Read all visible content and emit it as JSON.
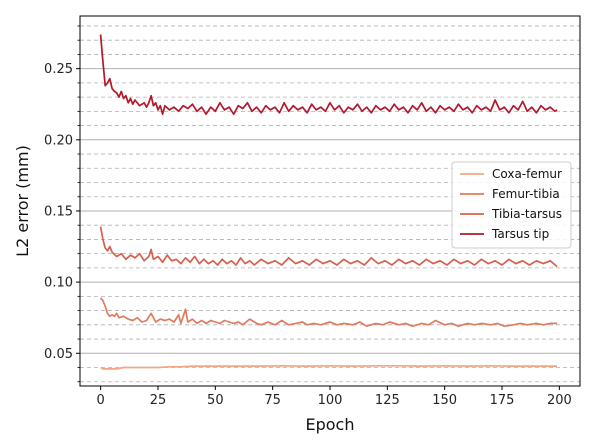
{
  "chart_data": {
    "type": "line",
    "title": "",
    "xlabel": "Epoch",
    "ylabel": "L2 error (mm)",
    "xlim": [
      -9,
      209
    ],
    "ylim": [
      0.027,
      0.287
    ],
    "xticks": [
      0,
      25,
      50,
      75,
      100,
      125,
      150,
      175,
      200
    ],
    "yticks": [
      0.05,
      0.1,
      0.15,
      0.2,
      0.25
    ],
    "ytick_labels": [
      "0.05",
      "0.10",
      "0.15",
      "0.20",
      "0.25"
    ],
    "yminor_step": 0.01,
    "grid": "y major solid, y minor dashed",
    "legend_position": "center-right",
    "series": [
      {
        "name": "Coxa-femur",
        "color": "#f4a582",
        "points": [
          [
            0,
            0.04
          ],
          [
            1,
            0.039
          ],
          [
            3,
            0.039
          ],
          [
            5,
            0.039
          ],
          [
            7,
            0.039
          ],
          [
            10,
            0.04
          ],
          [
            15,
            0.04
          ],
          [
            20,
            0.04
          ],
          [
            25,
            0.04
          ],
          [
            30,
            0.0405
          ],
          [
            35,
            0.0405
          ],
          [
            40,
            0.041
          ],
          [
            50,
            0.041
          ],
          [
            60,
            0.041
          ],
          [
            70,
            0.041
          ],
          [
            80,
            0.0412
          ],
          [
            90,
            0.041
          ],
          [
            100,
            0.0412
          ],
          [
            110,
            0.041
          ],
          [
            120,
            0.0412
          ],
          [
            130,
            0.0412
          ],
          [
            140,
            0.041
          ],
          [
            150,
            0.0412
          ],
          [
            160,
            0.041
          ],
          [
            170,
            0.0412
          ],
          [
            180,
            0.041
          ],
          [
            190,
            0.041
          ],
          [
            199,
            0.041
          ]
        ]
      },
      {
        "name": "Femur-tibia",
        "color": "#e07b5f",
        "points": [
          [
            0,
            0.089
          ],
          [
            1,
            0.087
          ],
          [
            2,
            0.083
          ],
          [
            3,
            0.078
          ],
          [
            4,
            0.076
          ],
          [
            5,
            0.077
          ],
          [
            6,
            0.076
          ],
          [
            7,
            0.078
          ],
          [
            8,
            0.075
          ],
          [
            10,
            0.076
          ],
          [
            12,
            0.074
          ],
          [
            14,
            0.073
          ],
          [
            16,
            0.075
          ],
          [
            18,
            0.072
          ],
          [
            20,
            0.073
          ],
          [
            22,
            0.078
          ],
          [
            24,
            0.072
          ],
          [
            26,
            0.074
          ],
          [
            28,
            0.073
          ],
          [
            30,
            0.074
          ],
          [
            32,
            0.072
          ],
          [
            34,
            0.077
          ],
          [
            35,
            0.071
          ],
          [
            37,
            0.081
          ],
          [
            38,
            0.072
          ],
          [
            40,
            0.074
          ],
          [
            42,
            0.071
          ],
          [
            44,
            0.073
          ],
          [
            46,
            0.071
          ],
          [
            48,
            0.073
          ],
          [
            50,
            0.072
          ],
          [
            52,
            0.071
          ],
          [
            54,
            0.073
          ],
          [
            56,
            0.072
          ],
          [
            58,
            0.071
          ],
          [
            60,
            0.072
          ],
          [
            62,
            0.07
          ],
          [
            65,
            0.074
          ],
          [
            68,
            0.071
          ],
          [
            70,
            0.07
          ],
          [
            73,
            0.072
          ],
          [
            76,
            0.07
          ],
          [
            79,
            0.073
          ],
          [
            82,
            0.07
          ],
          [
            85,
            0.071
          ],
          [
            88,
            0.072
          ],
          [
            90,
            0.07
          ],
          [
            93,
            0.071
          ],
          [
            96,
            0.07
          ],
          [
            100,
            0.072
          ],
          [
            103,
            0.07
          ],
          [
            106,
            0.071
          ],
          [
            110,
            0.07
          ],
          [
            113,
            0.072
          ],
          [
            116,
            0.069
          ],
          [
            120,
            0.071
          ],
          [
            123,
            0.07
          ],
          [
            126,
            0.072
          ],
          [
            130,
            0.07
          ],
          [
            133,
            0.071
          ],
          [
            136,
            0.069
          ],
          [
            140,
            0.071
          ],
          [
            143,
            0.07
          ],
          [
            146,
            0.073
          ],
          [
            150,
            0.07
          ],
          [
            153,
            0.071
          ],
          [
            156,
            0.069
          ],
          [
            160,
            0.071
          ],
          [
            163,
            0.07
          ],
          [
            166,
            0.071
          ],
          [
            170,
            0.07
          ],
          [
            173,
            0.071
          ],
          [
            176,
            0.069
          ],
          [
            180,
            0.07
          ],
          [
            183,
            0.071
          ],
          [
            186,
            0.07
          ],
          [
            190,
            0.071
          ],
          [
            193,
            0.07
          ],
          [
            196,
            0.071
          ],
          [
            199,
            0.071
          ]
        ]
      },
      {
        "name": "Tibia-tarsus",
        "color": "#d6604d",
        "points": [
          [
            0,
            0.139
          ],
          [
            1,
            0.13
          ],
          [
            2,
            0.124
          ],
          [
            3,
            0.122
          ],
          [
            4,
            0.125
          ],
          [
            5,
            0.121
          ],
          [
            7,
            0.118
          ],
          [
            9,
            0.12
          ],
          [
            11,
            0.116
          ],
          [
            13,
            0.119
          ],
          [
            15,
            0.117
          ],
          [
            17,
            0.12
          ],
          [
            19,
            0.115
          ],
          [
            21,
            0.118
          ],
          [
            22,
            0.123
          ],
          [
            23,
            0.116
          ],
          [
            25,
            0.118
          ],
          [
            27,
            0.114
          ],
          [
            29,
            0.119
          ],
          [
            31,
            0.115
          ],
          [
            33,
            0.116
          ],
          [
            35,
            0.113
          ],
          [
            37,
            0.117
          ],
          [
            39,
            0.114
          ],
          [
            41,
            0.118
          ],
          [
            43,
            0.113
          ],
          [
            45,
            0.116
          ],
          [
            47,
            0.113
          ],
          [
            49,
            0.115
          ],
          [
            51,
            0.112
          ],
          [
            53,
            0.116
          ],
          [
            55,
            0.113
          ],
          [
            57,
            0.115
          ],
          [
            59,
            0.112
          ],
          [
            61,
            0.117
          ],
          [
            63,
            0.113
          ],
          [
            65,
            0.115
          ],
          [
            67,
            0.112
          ],
          [
            70,
            0.116
          ],
          [
            73,
            0.113
          ],
          [
            76,
            0.115
          ],
          [
            79,
            0.112
          ],
          [
            82,
            0.117
          ],
          [
            85,
            0.113
          ],
          [
            88,
            0.115
          ],
          [
            91,
            0.112
          ],
          [
            94,
            0.116
          ],
          [
            97,
            0.113
          ],
          [
            100,
            0.115
          ],
          [
            103,
            0.112
          ],
          [
            106,
            0.116
          ],
          [
            109,
            0.113
          ],
          [
            112,
            0.115
          ],
          [
            115,
            0.112
          ],
          [
            118,
            0.117
          ],
          [
            121,
            0.113
          ],
          [
            124,
            0.115
          ],
          [
            127,
            0.112
          ],
          [
            130,
            0.116
          ],
          [
            133,
            0.113
          ],
          [
            136,
            0.115
          ],
          [
            139,
            0.112
          ],
          [
            142,
            0.116
          ],
          [
            145,
            0.113
          ],
          [
            148,
            0.115
          ],
          [
            151,
            0.112
          ],
          [
            154,
            0.116
          ],
          [
            157,
            0.113
          ],
          [
            160,
            0.115
          ],
          [
            163,
            0.112
          ],
          [
            166,
            0.116
          ],
          [
            169,
            0.113
          ],
          [
            172,
            0.115
          ],
          [
            175,
            0.112
          ],
          [
            178,
            0.116
          ],
          [
            181,
            0.113
          ],
          [
            184,
            0.115
          ],
          [
            187,
            0.112
          ],
          [
            190,
            0.115
          ],
          [
            193,
            0.113
          ],
          [
            196,
            0.115
          ],
          [
            199,
            0.111
          ]
        ]
      },
      {
        "name": "Tarsus tip",
        "color": "#b2182b",
        "points": [
          [
            0,
            0.274
          ],
          [
            1,
            0.255
          ],
          [
            2,
            0.238
          ],
          [
            3,
            0.24
          ],
          [
            4,
            0.243
          ],
          [
            5,
            0.236
          ],
          [
            6,
            0.234
          ],
          [
            7,
            0.233
          ],
          [
            8,
            0.23
          ],
          [
            9,
            0.234
          ],
          [
            10,
            0.229
          ],
          [
            11,
            0.231
          ],
          [
            12,
            0.226
          ],
          [
            13,
            0.229
          ],
          [
            14,
            0.225
          ],
          [
            15,
            0.228
          ],
          [
            17,
            0.224
          ],
          [
            19,
            0.226
          ],
          [
            20,
            0.223
          ],
          [
            21,
            0.226
          ],
          [
            22,
            0.231
          ],
          [
            23,
            0.224
          ],
          [
            24,
            0.226
          ],
          [
            25,
            0.221
          ],
          [
            26,
            0.224
          ],
          [
            27,
            0.218
          ],
          [
            28,
            0.224
          ],
          [
            30,
            0.221
          ],
          [
            32,
            0.223
          ],
          [
            34,
            0.22
          ],
          [
            36,
            0.224
          ],
          [
            38,
            0.222
          ],
          [
            40,
            0.225
          ],
          [
            42,
            0.22
          ],
          [
            44,
            0.223
          ],
          [
            46,
            0.218
          ],
          [
            48,
            0.223
          ],
          [
            50,
            0.22
          ],
          [
            52,
            0.226
          ],
          [
            54,
            0.221
          ],
          [
            56,
            0.223
          ],
          [
            58,
            0.218
          ],
          [
            60,
            0.224
          ],
          [
            62,
            0.222
          ],
          [
            64,
            0.226
          ],
          [
            66,
            0.22
          ],
          [
            68,
            0.223
          ],
          [
            70,
            0.219
          ],
          [
            72,
            0.224
          ],
          [
            74,
            0.221
          ],
          [
            76,
            0.223
          ],
          [
            78,
            0.219
          ],
          [
            80,
            0.226
          ],
          [
            82,
            0.22
          ],
          [
            84,
            0.224
          ],
          [
            86,
            0.221
          ],
          [
            88,
            0.223
          ],
          [
            90,
            0.219
          ],
          [
            92,
            0.225
          ],
          [
            94,
            0.221
          ],
          [
            96,
            0.223
          ],
          [
            98,
            0.22
          ],
          [
            100,
            0.226
          ],
          [
            102,
            0.221
          ],
          [
            104,
            0.224
          ],
          [
            106,
            0.219
          ],
          [
            108,
            0.223
          ],
          [
            110,
            0.221
          ],
          [
            112,
            0.225
          ],
          [
            114,
            0.22
          ],
          [
            116,
            0.223
          ],
          [
            118,
            0.219
          ],
          [
            120,
            0.224
          ],
          [
            122,
            0.221
          ],
          [
            124,
            0.223
          ],
          [
            126,
            0.22
          ],
          [
            128,
            0.225
          ],
          [
            130,
            0.221
          ],
          [
            132,
            0.223
          ],
          [
            134,
            0.219
          ],
          [
            136,
            0.224
          ],
          [
            138,
            0.221
          ],
          [
            140,
            0.226
          ],
          [
            142,
            0.22
          ],
          [
            144,
            0.223
          ],
          [
            146,
            0.219
          ],
          [
            148,
            0.224
          ],
          [
            150,
            0.221
          ],
          [
            152,
            0.223
          ],
          [
            154,
            0.22
          ],
          [
            156,
            0.225
          ],
          [
            158,
            0.221
          ],
          [
            160,
            0.223
          ],
          [
            162,
            0.219
          ],
          [
            164,
            0.224
          ],
          [
            166,
            0.221
          ],
          [
            168,
            0.223
          ],
          [
            170,
            0.22
          ],
          [
            172,
            0.228
          ],
          [
            174,
            0.221
          ],
          [
            176,
            0.223
          ],
          [
            178,
            0.219
          ],
          [
            180,
            0.224
          ],
          [
            182,
            0.221
          ],
          [
            184,
            0.227
          ],
          [
            186,
            0.22
          ],
          [
            188,
            0.223
          ],
          [
            190,
            0.219
          ],
          [
            192,
            0.224
          ],
          [
            194,
            0.221
          ],
          [
            196,
            0.223
          ],
          [
            198,
            0.22
          ],
          [
            199,
            0.221
          ]
        ]
      }
    ]
  }
}
